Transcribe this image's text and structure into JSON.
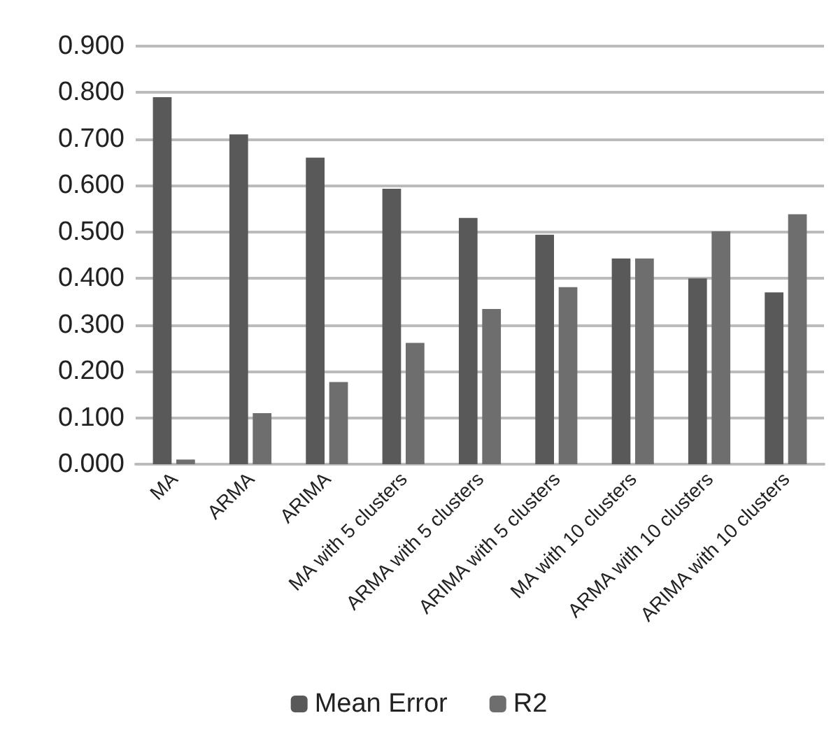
{
  "chart_data": {
    "type": "bar",
    "categories": [
      "MA",
      "ARMA",
      "ARIMA",
      "MA with 5 clusters",
      "ARMA with 5 clusters",
      "ARIMA with 5 clusters",
      "MA with 10 clusters",
      "ARMA with 10 clusters",
      "ARIMA with 10 clusters"
    ],
    "series": [
      {
        "name": "Mean Error",
        "color": "#595959",
        "values": [
          0.79,
          0.71,
          0.66,
          0.593,
          0.53,
          0.494,
          0.443,
          0.4,
          0.37
        ]
      },
      {
        "name": "R2",
        "color": "#6e6e6e",
        "values": [
          0.01,
          0.11,
          0.177,
          0.261,
          0.334,
          0.381,
          0.443,
          0.501,
          0.538
        ]
      }
    ],
    "ylim": [
      0,
      0.9
    ],
    "yticks": [
      {
        "value": 0,
        "label": "0.000"
      },
      {
        "value": 0.1,
        "label": "0.100"
      },
      {
        "value": 0.2,
        "label": "0.200"
      },
      {
        "value": 0.3,
        "label": "0.300"
      },
      {
        "value": 0.4,
        "label": "0.400"
      },
      {
        "value": 0.5,
        "label": "0.500"
      },
      {
        "value": 0.6,
        "label": "0.600"
      },
      {
        "value": 0.7,
        "label": "0.700"
      },
      {
        "value": 0.8,
        "label": "0.800"
      },
      {
        "value": 0.9,
        "label": "0.900"
      }
    ],
    "grid": "y",
    "legend": "bottom"
  }
}
